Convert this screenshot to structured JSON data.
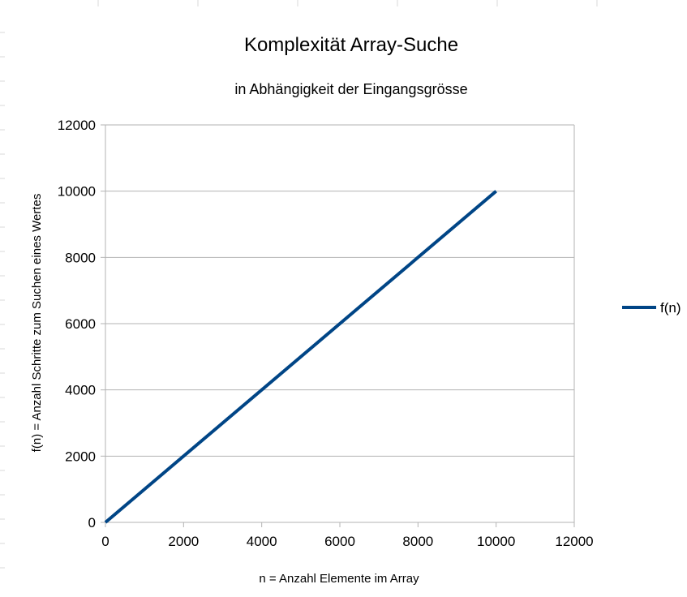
{
  "chart_data": {
    "type": "line",
    "title": "Komplexität Array-Suche",
    "subtitle": "in Abhängigkeit der Eingangsgrösse",
    "xlabel": "n = Anzahl Elemente im Array",
    "ylabel": "f(n) = Anzahl Schritte zum Suchen eines Wertes",
    "xlim": [
      0,
      12000
    ],
    "ylim": [
      0,
      12000
    ],
    "xticks": [
      0,
      2000,
      4000,
      6000,
      8000,
      10000,
      12000
    ],
    "yticks": [
      0,
      2000,
      4000,
      6000,
      8000,
      10000,
      12000
    ],
    "grid": "horizontal",
    "legend_position": "right",
    "series": [
      {
        "name": "f(n)",
        "color": "#004586",
        "x": [
          0,
          10000
        ],
        "y": [
          0,
          10000
        ]
      }
    ]
  }
}
